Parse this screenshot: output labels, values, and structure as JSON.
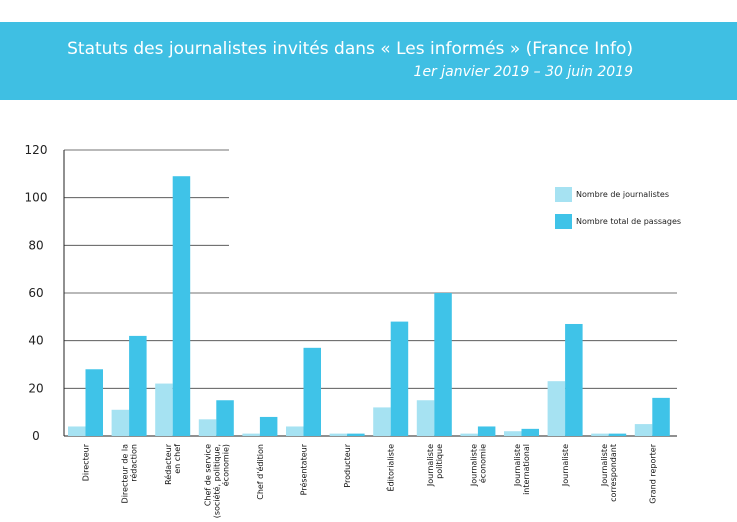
{
  "header": {
    "title": "Statuts des journalistes invités dans « Les informés » (France Info)",
    "subtitle": "1er janvier 2019 – 30 juin 2019"
  },
  "colors": {
    "header_bg": "#3fbfe3",
    "series1": "#a6e2f2",
    "series2": "#3fc3e8"
  },
  "chart_data": {
    "type": "bar",
    "title": "Statuts des journalistes invités dans « Les informés » (France Info)",
    "subtitle": "1er janvier 2019 – 30 juin 2019",
    "categories": [
      [
        "Directeur"
      ],
      [
        "Directeur de la",
        "rédaction"
      ],
      [
        "Rédacteur",
        "en chef"
      ],
      [
        "Chef de service",
        "(société, politique,",
        "économie)"
      ],
      [
        "Chef d'édition"
      ],
      [
        "Présentateur"
      ],
      [
        "Producteur"
      ],
      [
        "Éditorialiste"
      ],
      [
        "Journaliste",
        "politique"
      ],
      [
        "Journaliste",
        "économie"
      ],
      [
        "Journaliste",
        "international"
      ],
      [
        "Journaliste"
      ],
      [
        "Journaliste",
        "correspondant"
      ],
      [
        "Grand reporter"
      ]
    ],
    "series": [
      {
        "name": "Nombre de journalistes",
        "values": [
          4,
          11,
          22,
          7,
          1,
          4,
          1,
          12,
          15,
          1,
          2,
          23,
          1,
          5
        ]
      },
      {
        "name": "Nombre total de passages",
        "values": [
          28,
          42,
          109,
          15,
          8,
          37,
          1,
          48,
          60,
          4,
          3,
          47,
          1,
          16
        ]
      }
    ],
    "yticks": [
      "0",
      "20",
      "40",
      "60",
      "80",
      "100",
      "120"
    ],
    "ylim": [
      0,
      120
    ],
    "grid": true,
    "legend_position": "right"
  }
}
